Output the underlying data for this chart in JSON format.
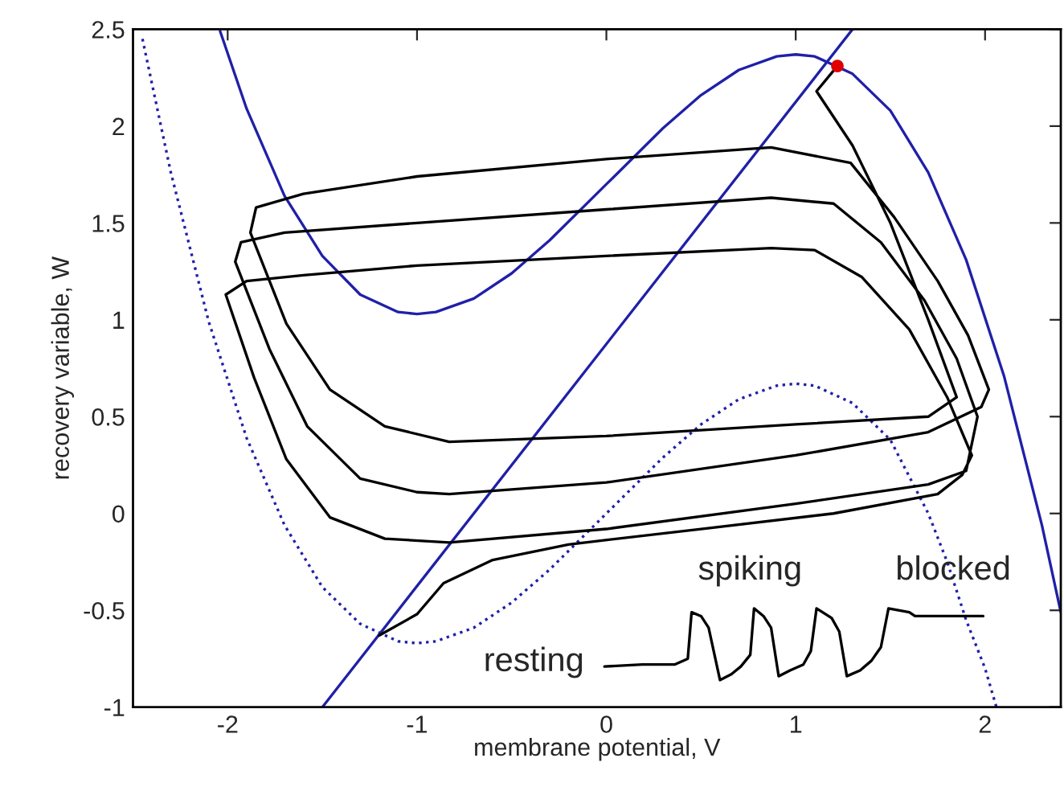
{
  "chart_data": {
    "type": "line",
    "xlabel": "membrane potential, V",
    "ylabel": "recovery variable, W",
    "xlim": [
      -2.5,
      2.4
    ],
    "ylim": [
      -1,
      2.5
    ],
    "xticks": [
      -2,
      -1,
      0,
      1,
      2
    ],
    "yticks": [
      -1,
      -0.5,
      0,
      0.5,
      1,
      1.5,
      2,
      2.5
    ],
    "grid": false,
    "legend": false,
    "marker": "none",
    "line_style": "solid",
    "annotations": [
      "resting",
      "spiking",
      "blocked"
    ],
    "series": [
      {
        "color": "#2020a8",
        "x": [
          -2.04,
          -1.9,
          -1.7,
          -1.5,
          -1.3,
          -1.1,
          -1.0,
          -0.9,
          -0.7,
          -0.5,
          -0.3,
          0,
          0.3,
          0.5,
          0.7,
          0.9,
          1.0,
          1.1,
          1.3,
          1.5,
          1.7,
          1.9,
          2.1,
          2.3,
          2.4
        ],
        "values": [
          2.49,
          2.09,
          1.64,
          1.33,
          1.13,
          1.04,
          1.03,
          1.04,
          1.11,
          1.24,
          1.41,
          1.7,
          1.99,
          2.16,
          2.29,
          2.36,
          2.37,
          2.36,
          2.27,
          2.08,
          1.76,
          1.31,
          0.71,
          -0.06,
          -0.51
        ]
      },
      {
        "color": "#2020a8",
        "line_style": "dotted",
        "x": [
          -2.45,
          -2.3,
          -2.1,
          -1.9,
          -1.7,
          -1.5,
          -1.3,
          -1.1,
          -1.0,
          -0.9,
          -0.7,
          -0.5,
          -0.3,
          0,
          0.3,
          0.5,
          0.7,
          0.9,
          1.0,
          1.1,
          1.3,
          1.5,
          1.7,
          1.8,
          1.9,
          2.0,
          2.06
        ],
        "values": [
          2.45,
          1.76,
          0.99,
          0.39,
          -0.06,
          -0.38,
          -0.57,
          -0.66,
          -0.67,
          -0.66,
          -0.59,
          -0.46,
          -0.29,
          0,
          0.29,
          0.46,
          0.59,
          0.66,
          0.67,
          0.66,
          0.57,
          0.38,
          0.0,
          -0.25,
          -0.55,
          -0.8,
          -1.0
        ]
      },
      {
        "color": "#2020a8",
        "x": [
          -1.5,
          1.3
        ],
        "values": [
          -1.0,
          2.5
        ]
      },
      {
        "color": "#000000",
        "x": [
          -0.01,
          0.19,
          0.36,
          0.43,
          0.45,
          0.5,
          0.54,
          0.6,
          0.66,
          0.71,
          0.76,
          0.78,
          0.83,
          0.87,
          0.91,
          0.97,
          1.04,
          1.08,
          1.11,
          1.19,
          1.23,
          1.27,
          1.34,
          1.4,
          1.45,
          1.49,
          1.6,
          1.63,
          1.99
        ],
        "values": [
          -0.79,
          -0.78,
          -0.78,
          -0.75,
          -0.51,
          -0.53,
          -0.59,
          -0.86,
          -0.83,
          -0.79,
          -0.73,
          -0.49,
          -0.53,
          -0.59,
          -0.84,
          -0.81,
          -0.78,
          -0.71,
          -0.49,
          -0.54,
          -0.61,
          -0.84,
          -0.81,
          -0.76,
          -0.69,
          -0.49,
          -0.51,
          -0.53,
          -0.53
        ]
      },
      {
        "color": "#000000",
        "x": [
          -1.2,
          -1.0,
          -0.86,
          -0.6,
          -0.2,
          0.5,
          1.2,
          1.75,
          1.88,
          1.93,
          1.8,
          1.6,
          1.35,
          1.1,
          0.87,
          0,
          -1,
          -1.6,
          -1.9,
          -2.01,
          -1.86,
          -1.69,
          -1.46,
          -1.17,
          -0.83,
          0,
          1,
          1.7,
          1.9,
          1.96,
          1.85,
          1.68,
          1.45,
          1.2,
          0.87,
          0,
          -1,
          -1.7,
          -1.93,
          -1.96,
          -1.78,
          -1.58,
          -1.3,
          -1.0,
          -0.83,
          0,
          1,
          1.7,
          1.98,
          2.02,
          1.91,
          1.75,
          1.52,
          1.29,
          0.87,
          0,
          -1,
          -1.6,
          -1.85,
          -1.88,
          -1.69,
          -1.46,
          -1.17,
          -0.83,
          0,
          1,
          1.7,
          1.85,
          1.7,
          1.5,
          1.3,
          1.11,
          1.22
        ],
        "values": [
          -0.63,
          -0.52,
          -0.36,
          -0.24,
          -0.16,
          -0.08,
          0.0,
          0.1,
          0.2,
          0.3,
          0.6,
          0.95,
          1.22,
          1.36,
          1.37,
          1.33,
          1.28,
          1.23,
          1.2,
          1.13,
          0.7,
          0.28,
          -0.02,
          -0.13,
          -0.15,
          -0.08,
          0.05,
          0.15,
          0.22,
          0.5,
          0.8,
          1.1,
          1.4,
          1.6,
          1.63,
          1.57,
          1.5,
          1.45,
          1.4,
          1.3,
          0.85,
          0.45,
          0.18,
          0.11,
          0.1,
          0.16,
          0.3,
          0.42,
          0.55,
          0.64,
          0.92,
          1.2,
          1.53,
          1.81,
          1.89,
          1.83,
          1.74,
          1.65,
          1.58,
          1.45,
          0.98,
          0.64,
          0.45,
          0.37,
          0.4,
          0.46,
          0.5,
          0.6,
          1.0,
          1.5,
          1.9,
          2.18,
          2.31
        ]
      },
      {
        "type": "scatter",
        "color": "#e00000",
        "marker": "circle",
        "x": [
          1.22
        ],
        "values": [
          2.31
        ]
      }
    ]
  }
}
